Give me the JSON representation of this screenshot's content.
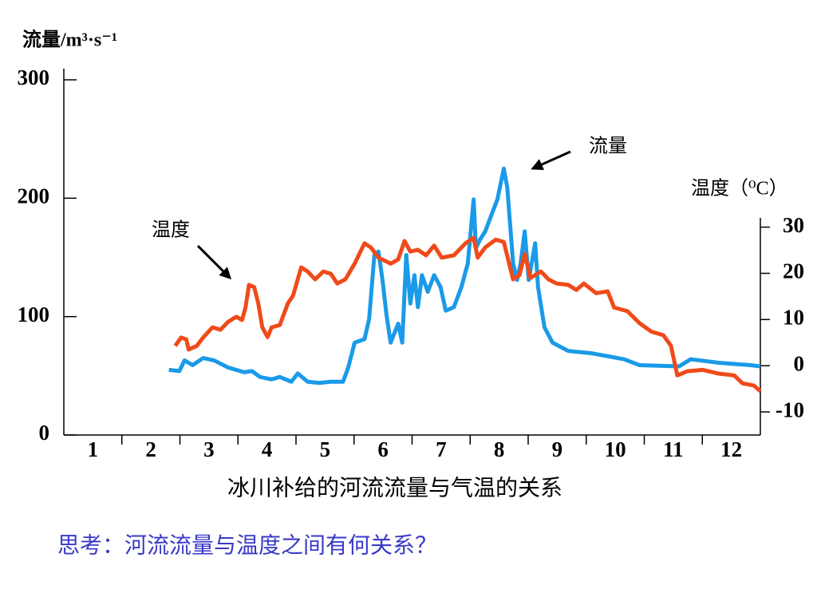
{
  "chart_data": {
    "type": "line",
    "caption": "冰川补给的河流流量与气温的关系",
    "question": "思考：河流流量与温度之间有何关系？",
    "y_label": "流量/m³·s⁻¹",
    "y2_label": "温度（⁰C）",
    "annotations": [
      "流量",
      "温度"
    ],
    "categories": [
      "1",
      "2",
      "3",
      "4",
      "5",
      "6",
      "7",
      "8",
      "9",
      "10",
      "11",
      "12"
    ],
    "xlim": [
      0.5,
      12.5
    ],
    "ylim": [
      0,
      300
    ],
    "yticks": [
      0,
      100,
      200,
      300
    ],
    "y2lim": [
      -15,
      32
    ],
    "y2ticks": [
      -10,
      0,
      10,
      20,
      30
    ],
    "series": [
      {
        "name": "流量",
        "color": "#1a9ae8",
        "x": [
          2.31,
          2.49,
          2.58,
          2.72,
          2.9,
          3.09,
          3.33,
          3.47,
          3.61,
          3.74,
          3.88,
          4.08,
          4.22,
          4.42,
          4.53,
          4.7,
          4.9,
          5.1,
          5.31,
          5.4,
          5.51,
          5.68,
          5.76,
          5.85,
          5.92,
          5.99,
          6.06,
          6.13,
          6.26,
          6.33,
          6.4,
          6.47,
          6.54,
          6.6,
          6.67,
          6.77,
          6.88,
          6.99,
          7.08,
          7.22,
          7.35,
          7.46,
          7.56,
          7.6,
          7.67,
          7.76,
          7.86,
          7.97,
          8.08,
          8.14,
          8.24,
          8.31,
          8.37,
          8.44,
          8.51,
          8.62,
          8.67,
          8.78,
          8.92,
          9.19,
          9.6,
          10.15,
          10.42,
          11.1,
          11.3,
          11.78,
          12.33,
          12.5
        ],
        "values": [
          55,
          54,
          63,
          59,
          65,
          63,
          57,
          55,
          53,
          54,
          49,
          47,
          49,
          45,
          52,
          45,
          44,
          45,
          45,
          57,
          78,
          81,
          98,
          152,
          155,
          131,
          101,
          78,
          94,
          78,
          152,
          111,
          135,
          108,
          135,
          121,
          135,
          125,
          105,
          108,
          125,
          145,
          199,
          158,
          165,
          172,
          185,
          199,
          225,
          209,
          145,
          131,
          145,
          172,
          131,
          162,
          125,
          91,
          78,
          71,
          69,
          64,
          59,
          58,
          64,
          61,
          59,
          58
        ]
      },
      {
        "name": "温度",
        "color": "#f04a1a",
        "axis": "y2",
        "x": [
          2.42,
          2.52,
          2.61,
          2.65,
          2.79,
          2.9,
          3.06,
          3.2,
          3.33,
          3.47,
          3.57,
          3.63,
          3.69,
          3.78,
          3.85,
          3.92,
          4.01,
          4.08,
          4.22,
          4.36,
          4.45,
          4.53,
          4.59,
          4.7,
          4.83,
          4.97,
          5.1,
          5.21,
          5.35,
          5.51,
          5.68,
          5.79,
          5.92,
          6.13,
          6.26,
          6.37,
          6.47,
          6.6,
          6.74,
          6.88,
          7.01,
          7.22,
          7.42,
          7.56,
          7.63,
          7.76,
          7.94,
          8.08,
          8.24,
          8.35,
          8.44,
          8.54,
          8.72,
          8.85,
          8.99,
          9.19,
          9.33,
          9.46,
          9.67,
          9.87,
          9.98,
          10.21,
          10.42,
          10.62,
          10.83,
          10.96,
          11.07,
          11.24,
          11.51,
          11.78,
          12.05,
          12.19,
          12.39,
          12.5
        ],
        "values": [
          4.3,
          6.1,
          5.7,
          3.5,
          4.3,
          6.1,
          8.3,
          7.8,
          9.5,
          10.6,
          9.9,
          12.6,
          17.5,
          17.0,
          13.5,
          8.3,
          6.2,
          8.3,
          8.8,
          13.5,
          15.2,
          18.7,
          21.3,
          20.4,
          18.7,
          20.4,
          19.9,
          17.8,
          18.7,
          22.1,
          26.5,
          25.6,
          23.4,
          22.1,
          23.0,
          27.0,
          24.7,
          25.1,
          23.9,
          26.0,
          23.4,
          23.9,
          26.5,
          27.7,
          23.4,
          25.6,
          27.3,
          26.8,
          18.7,
          19.6,
          24.2,
          19.0,
          20.4,
          18.7,
          17.8,
          17.5,
          16.4,
          17.8,
          15.7,
          16.1,
          12.6,
          11.8,
          9.2,
          7.4,
          6.6,
          4.3,
          -2.1,
          -1.2,
          -0.9,
          -1.7,
          -2.1,
          -3.8,
          -4.3,
          -5.5
        ]
      }
    ]
  }
}
